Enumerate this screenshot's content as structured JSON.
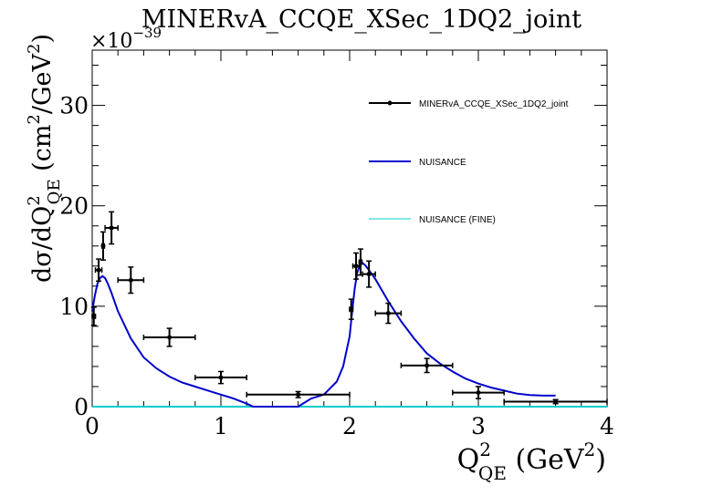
{
  "chart_data": {
    "type": "scatter",
    "title": "MINERvA_CCQE_XSec_1DQ2_joint",
    "exponent_label": "×10",
    "exponent_power": "−39",
    "xlabel": {
      "main": "Q",
      "sup": "2",
      "sub": "QE",
      "unit_open": " (GeV",
      "unit_sup": "2",
      "unit_close": ")"
    },
    "ylabel": {
      "main": "dσ/dQ",
      "sup": "2",
      "sub": "QE",
      "unit_open": " (cm",
      "unit_sup": "2",
      "unit_mid": "/GeV",
      "unit_sup2": "2",
      "unit_close": ")"
    },
    "xlim": [
      0,
      4
    ],
    "ylim": [
      0,
      35.5
    ],
    "x_ticks": [
      0,
      1,
      2,
      3,
      4
    ],
    "x_tick_labels": [
      "0",
      "1",
      "2",
      "3",
      "4"
    ],
    "y_ticks": [
      0,
      10,
      20,
      30
    ],
    "y_tick_labels": [
      "0",
      "10",
      "20",
      "30"
    ],
    "grid": false,
    "legend_position": "top-right",
    "series": [
      {
        "name": "MINERvA_CCQE_XSec_1DQ2_joint",
        "kind": "points-with-errors",
        "color": "#000000",
        "points": [
          {
            "x": 0.0125,
            "xerr": 0.0125,
            "y": 9.0,
            "yerr": 0.9
          },
          {
            "x": 0.05,
            "xerr": 0.025,
            "y": 13.6,
            "yerr": 1.1
          },
          {
            "x": 0.085,
            "xerr": 0.01,
            "y": 16.0,
            "yerr": 1.4
          },
          {
            "x": 0.15,
            "xerr": 0.05,
            "y": 17.8,
            "yerr": 1.6
          },
          {
            "x": 0.3,
            "xerr": 0.1,
            "y": 12.6,
            "yerr": 1.3
          },
          {
            "x": 0.6,
            "xerr": 0.2,
            "y": 6.9,
            "yerr": 0.9
          },
          {
            "x": 1.0,
            "xerr": 0.2,
            "y": 2.9,
            "yerr": 0.6
          },
          {
            "x": 1.6,
            "xerr": 0.4,
            "y": 1.2,
            "yerr": 0.3
          },
          {
            "x": 2.0125,
            "xerr": 0.0125,
            "y": 9.7,
            "yerr": 1.0
          },
          {
            "x": 2.05,
            "xerr": 0.025,
            "y": 14.0,
            "yerr": 1.3
          },
          {
            "x": 2.085,
            "xerr": 0.01,
            "y": 14.4,
            "yerr": 1.3
          },
          {
            "x": 2.15,
            "xerr": 0.05,
            "y": 13.2,
            "yerr": 1.3
          },
          {
            "x": 2.3,
            "xerr": 0.1,
            "y": 9.3,
            "yerr": 1.0
          },
          {
            "x": 2.6,
            "xerr": 0.2,
            "y": 4.1,
            "yerr": 0.7
          },
          {
            "x": 3.0,
            "xerr": 0.2,
            "y": 1.4,
            "yerr": 0.6
          },
          {
            "x": 3.6,
            "xerr": 0.4,
            "y": 0.5,
            "yerr": 0.2
          }
        ]
      },
      {
        "name": "NUISANCE",
        "kind": "line",
        "color": "#0000cc",
        "x": [
          0.0,
          0.02,
          0.04,
          0.06,
          0.08,
          0.1,
          0.12,
          0.15,
          0.2,
          0.3,
          0.4,
          0.5,
          0.6,
          0.7,
          0.8,
          0.9,
          1.0,
          1.1,
          1.2,
          1.25,
          1.6,
          1.7,
          1.8,
          1.9,
          1.95,
          2.0,
          2.02,
          2.04,
          2.06,
          2.08,
          2.1,
          2.12,
          2.15,
          2.2,
          2.3,
          2.4,
          2.5,
          2.6,
          2.7,
          2.8,
          2.9,
          3.0,
          3.1,
          3.2,
          3.3,
          3.4,
          3.5,
          3.6
        ],
        "y": [
          9.5,
          11.0,
          12.2,
          12.8,
          13.0,
          12.8,
          12.3,
          11.3,
          9.5,
          6.8,
          4.9,
          3.8,
          3.0,
          2.4,
          2.0,
          1.6,
          1.2,
          0.8,
          0.3,
          0.0,
          0.0,
          0.8,
          1.2,
          2.5,
          4.0,
          7.0,
          9.5,
          11.8,
          13.4,
          14.1,
          14.3,
          14.1,
          13.6,
          12.7,
          10.5,
          8.5,
          6.8,
          5.3,
          4.3,
          3.5,
          2.8,
          2.3,
          1.9,
          1.6,
          1.3,
          1.15,
          1.1,
          1.1
        ]
      },
      {
        "name": "NUISANCE (FINE)",
        "kind": "line",
        "color": "#00cccc",
        "x": [
          0,
          4
        ],
        "y": [
          0,
          0
        ]
      }
    ]
  }
}
